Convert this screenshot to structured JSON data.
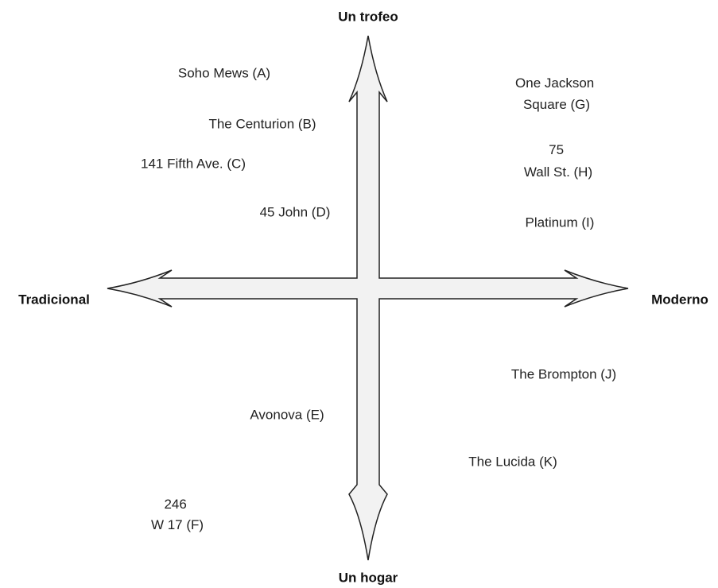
{
  "axes": {
    "top": "Un trofeo",
    "bottom": "Un hogar",
    "left": "Tradicional",
    "right": "Moderno"
  },
  "items": [
    {
      "lines": [
        "Soho Mews (A)"
      ]
    },
    {
      "lines": [
        "The Centurion (B)"
      ]
    },
    {
      "lines": [
        "141 Fifth Ave. (C)"
      ]
    },
    {
      "lines": [
        "45 John (D)"
      ]
    },
    {
      "lines": [
        "Avonova (E)"
      ]
    },
    {
      "lines": [
        "246",
        "W 17 (F)"
      ]
    },
    {
      "lines": [
        "One Jackson",
        "Square (G)"
      ]
    },
    {
      "lines": [
        "75",
        "Wall St. (H)"
      ]
    },
    {
      "lines": [
        "Platinum (I)"
      ]
    },
    {
      "lines": [
        "The Brompton (J)"
      ]
    },
    {
      "lines": [
        "The Lucida (K)"
      ]
    }
  ]
}
